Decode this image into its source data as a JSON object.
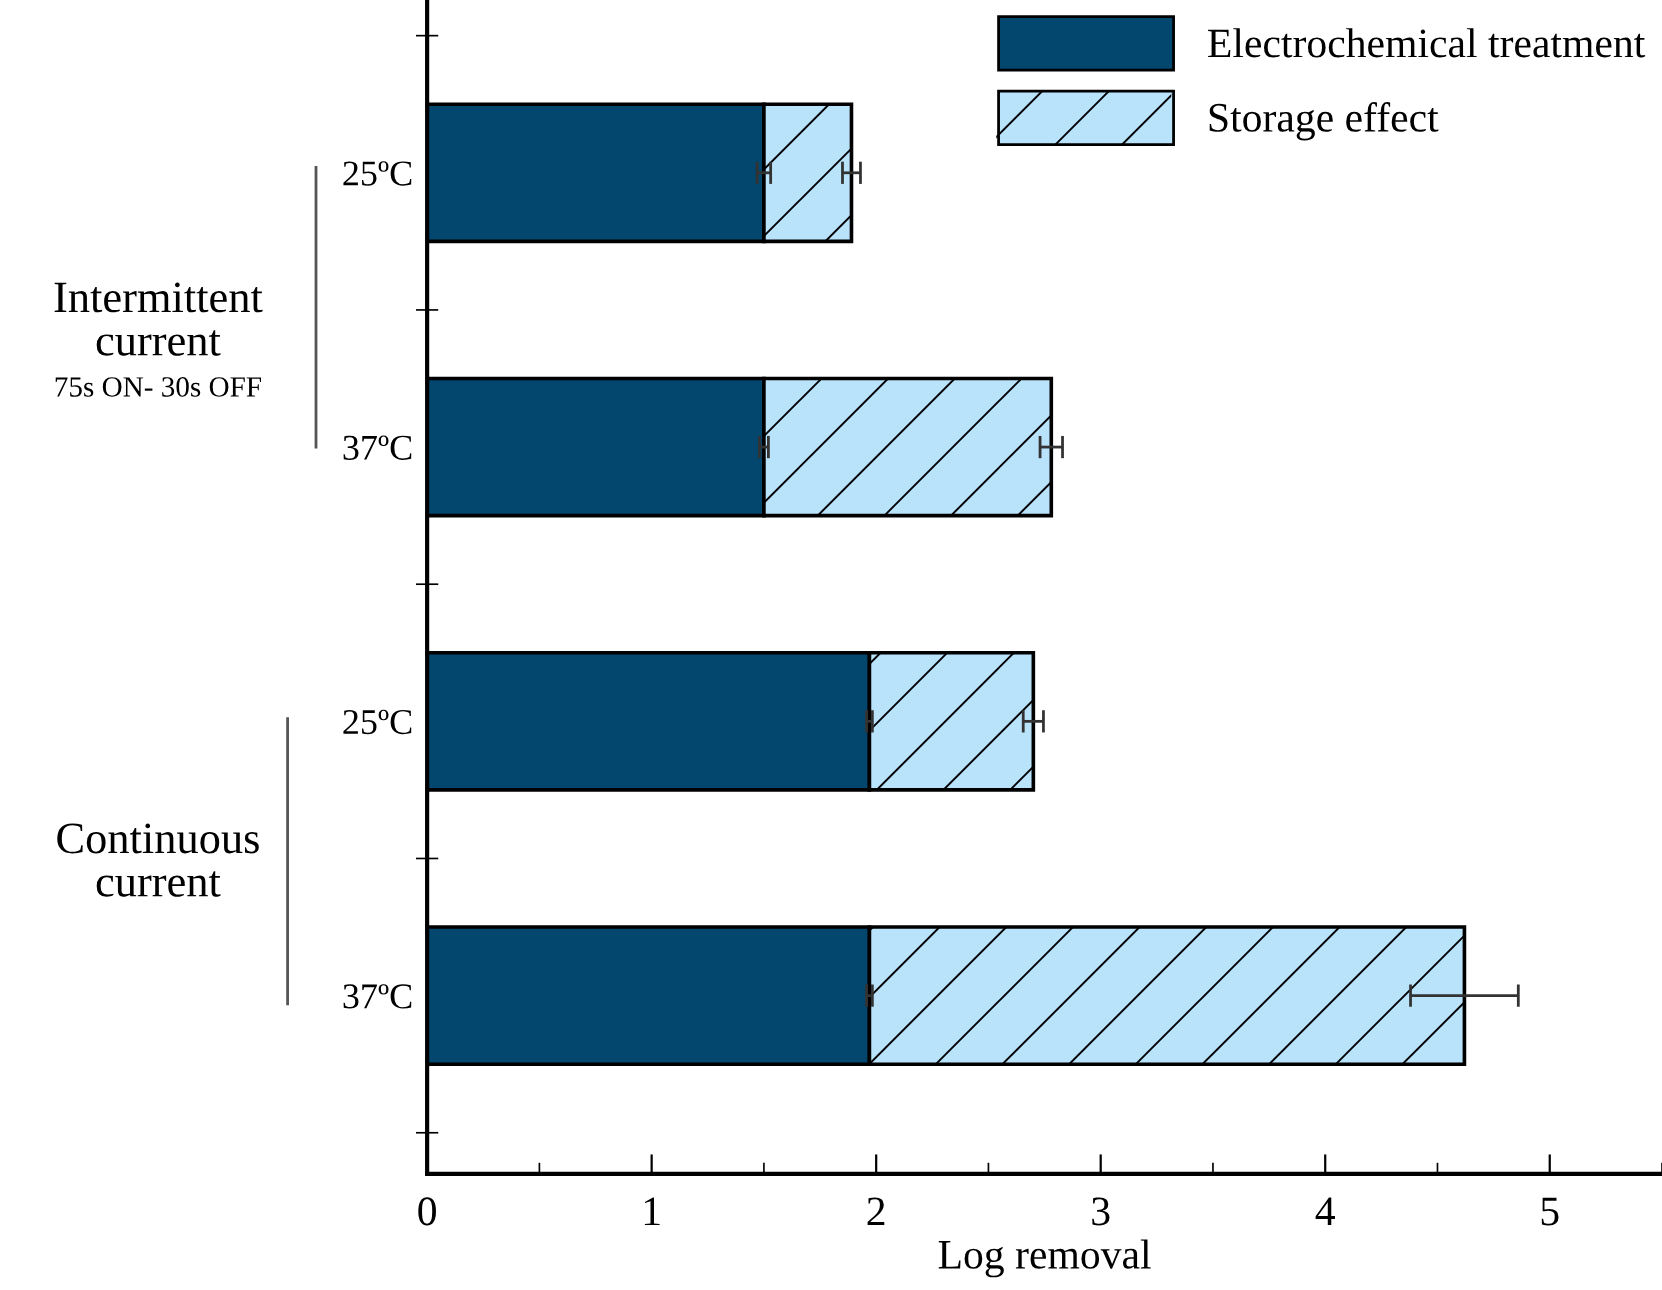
{
  "chart_data": {
    "type": "bar",
    "orientation": "horizontal",
    "stacked": true,
    "xlabel": "Log removal",
    "categories": [
      "25ºC",
      "37ºC",
      "25ºC",
      "37ºC"
    ],
    "series": [
      {
        "name": "Electrochemical treatment",
        "color": "#03466e",
        "values": [
          1.5,
          1.5,
          1.97,
          1.97
        ],
        "errors": [
          0.03,
          0.02,
          0.013,
          0.013
        ]
      },
      {
        "name": "Storage effect",
        "color": "#b9e3fb",
        "values": [
          0.39,
          1.28,
          0.73,
          2.65
        ],
        "errors": [
          0.04,
          0.05,
          0.045,
          0.24
        ]
      }
    ],
    "xlim": [
      0,
      5.5
    ],
    "xticks": [
      0,
      1,
      2,
      3,
      4,
      5
    ],
    "grid": false,
    "legend": "top right",
    "annotations": [
      "Intermittent\ncurrent",
      "75s ON- 30s OFF",
      "Continuous\ncurrent"
    ]
  }
}
